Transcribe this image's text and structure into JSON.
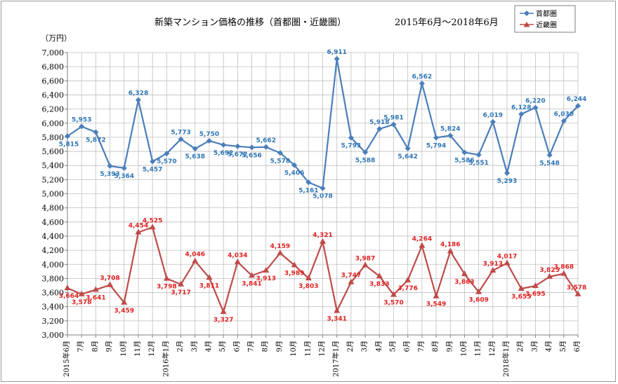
{
  "chart_data": {
    "type": "line",
    "title": "新築マンション価格の推移（首都圏・近畿圏）",
    "subtitle": "2015年6月～2018年6月",
    "ylabel": "（万円）",
    "ylim": [
      3000,
      7000
    ],
    "ystep": 200,
    "grid": true,
    "legend_position": "top-right",
    "categories": [
      "2015年6月",
      "7月",
      "8月",
      "9月",
      "10月",
      "11月",
      "12月",
      "2016年1月",
      "2月",
      "3月",
      "4月",
      "5月",
      "6月",
      "7月",
      "8月",
      "9月",
      "10月",
      "11月",
      "12月",
      "2017年1月",
      "2月",
      "3月",
      "4月",
      "5月",
      "6月",
      "7月",
      "8月",
      "9月",
      "10月",
      "11月",
      "12月",
      "2018年1月",
      "2月",
      "3月",
      "4月",
      "5月",
      "6月"
    ],
    "series": [
      {
        "name": "首都圏",
        "color": "#4a7ebb",
        "label_color": "#2e75b6",
        "marker": "diamond",
        "values": [
          5815,
          5953,
          5872,
          5393,
          5364,
          6328,
          5457,
          5570,
          5773,
          5638,
          5750,
          5692,
          5672,
          5656,
          5662,
          5578,
          5406,
          5161,
          5078,
          6911,
          5793,
          5588,
          5918,
          5981,
          5642,
          6562,
          5794,
          5824,
          5586,
          5551,
          6019,
          5293,
          6128,
          6220,
          5548,
          6030,
          6244
        ],
        "labels": [
          "5,815",
          "5,953",
          "5,872",
          "5,393",
          "5,364",
          "6,328",
          "5,457",
          "5,570",
          "5,773",
          "5,638",
          "5,750",
          "5,692",
          "5,672",
          "5,656",
          "5,662",
          "5,578",
          "5,406",
          "5,161",
          "5,078",
          "6,911",
          "5,793",
          "5,588",
          "5,918",
          "5,981",
          "5,642",
          "6,562",
          "5,794",
          "5,824",
          "5,586",
          "5,551",
          "6,019",
          "5,293",
          "6,128",
          "6,220",
          "5,548",
          "6,030",
          "6,244"
        ]
      },
      {
        "name": "近畿圏",
        "color": "#be4b48",
        "label_color": "#e02020",
        "marker": "triangle",
        "values": [
          3664,
          3578,
          3641,
          3708,
          3459,
          4454,
          4525,
          3798,
          3717,
          4046,
          3811,
          3327,
          4034,
          3841,
          3913,
          4159,
          3989,
          3803,
          4321,
          3341,
          3747,
          3987,
          3833,
          3570,
          3776,
          4264,
          3549,
          4186,
          3863,
          3609,
          3913,
          4017,
          3655,
          3695,
          3825,
          3868,
          3578
        ],
        "labels": [
          "3,664",
          "3,578",
          "3,641",
          "3,708",
          "3,459",
          "4,454",
          "4,525",
          "3,798",
          "3,717",
          "4,046",
          "3,811",
          "3,327",
          "4,034",
          "3,841",
          "3,913",
          "4,159",
          "3,989",
          "3,803",
          "4,321",
          "3,341",
          "3,747",
          "3,987",
          "3,833",
          "3,570",
          "3,776",
          "4,264",
          "3,549",
          "4,186",
          "3,863",
          "3,609",
          "3,913",
          "4,017",
          "3,655",
          "3,695",
          "3,825",
          "3,868",
          "3,578"
        ]
      }
    ]
  }
}
